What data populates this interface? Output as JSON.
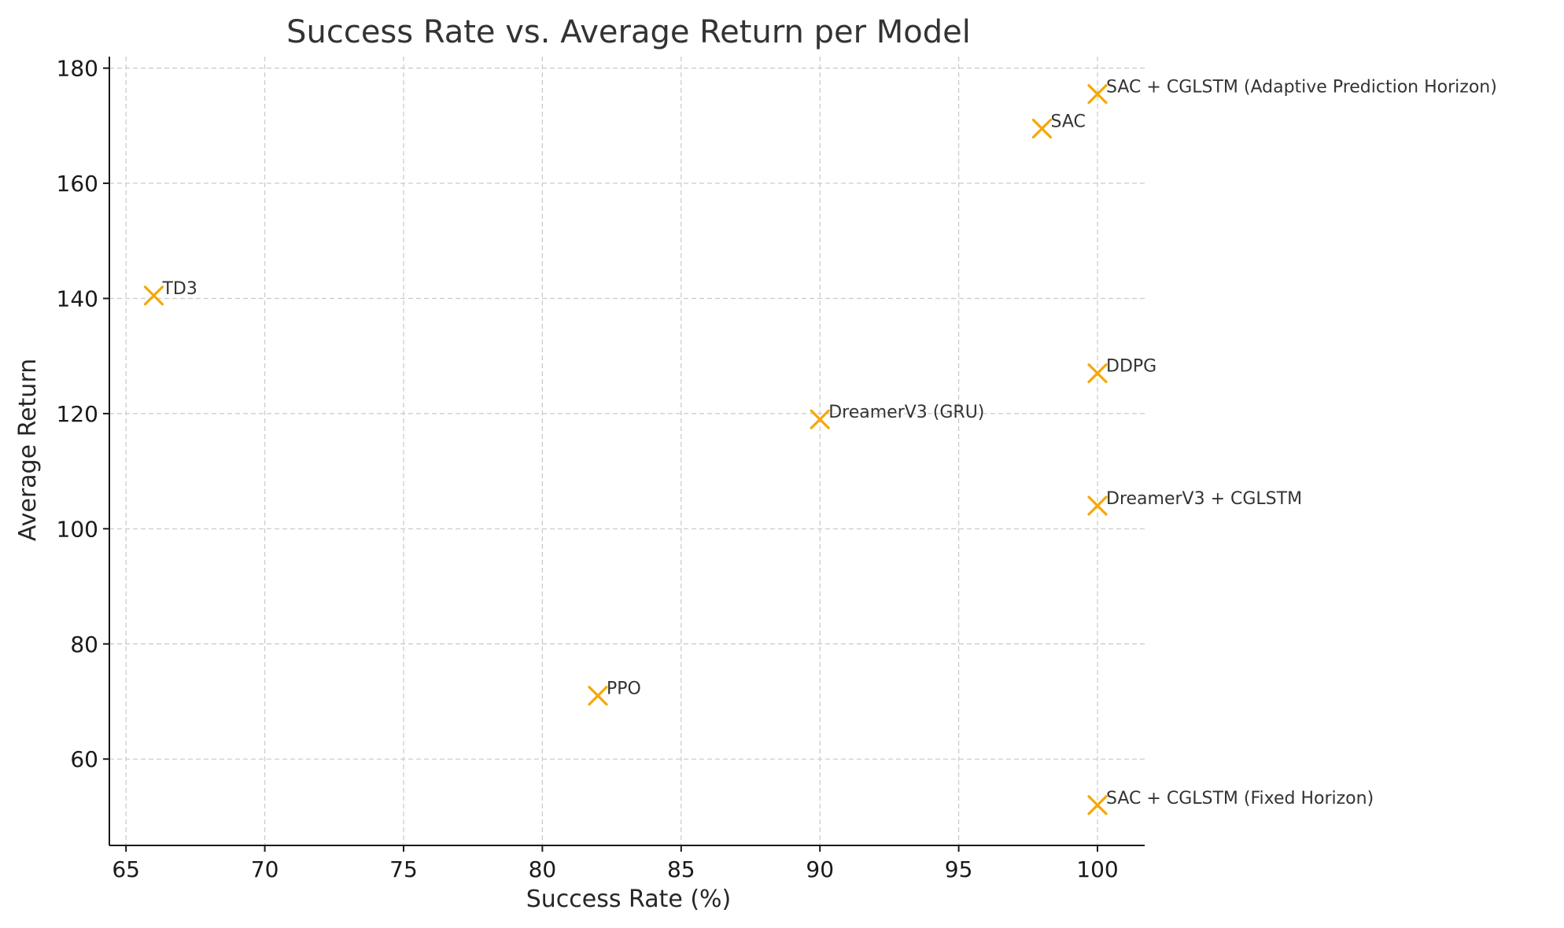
{
  "chart_data": {
    "type": "scatter",
    "title": "Success Rate vs. Average Return per Model",
    "xlabel": "Success Rate (%)",
    "ylabel": "Average Return",
    "xlim": [
      64.4,
      101.7
    ],
    "ylim": [
      45,
      182
    ],
    "xticks": [
      65,
      70,
      75,
      80,
      85,
      90,
      95,
      100
    ],
    "yticks": [
      60,
      80,
      100,
      120,
      140,
      160,
      180
    ],
    "grid": true,
    "marker": "x",
    "marker_color": "#F5A800",
    "points": [
      {
        "label": "SAC + CGLSTM (Adaptive Prediction Horizon)",
        "x": 100,
        "y": 175.5
      },
      {
        "label": "SAC",
        "x": 98,
        "y": 169.5
      },
      {
        "label": "TD3",
        "x": 66,
        "y": 140.5
      },
      {
        "label": "DDPG",
        "x": 100,
        "y": 127
      },
      {
        "label": "DreamerV3 (GRU)",
        "x": 90,
        "y": 119
      },
      {
        "label": "DreamerV3 + CGLSTM",
        "x": 100,
        "y": 104
      },
      {
        "label": "PPO",
        "x": 82,
        "y": 71
      },
      {
        "label": "SAC + CGLSTM (Fixed Horizon)",
        "x": 100,
        "y": 52
      }
    ]
  }
}
